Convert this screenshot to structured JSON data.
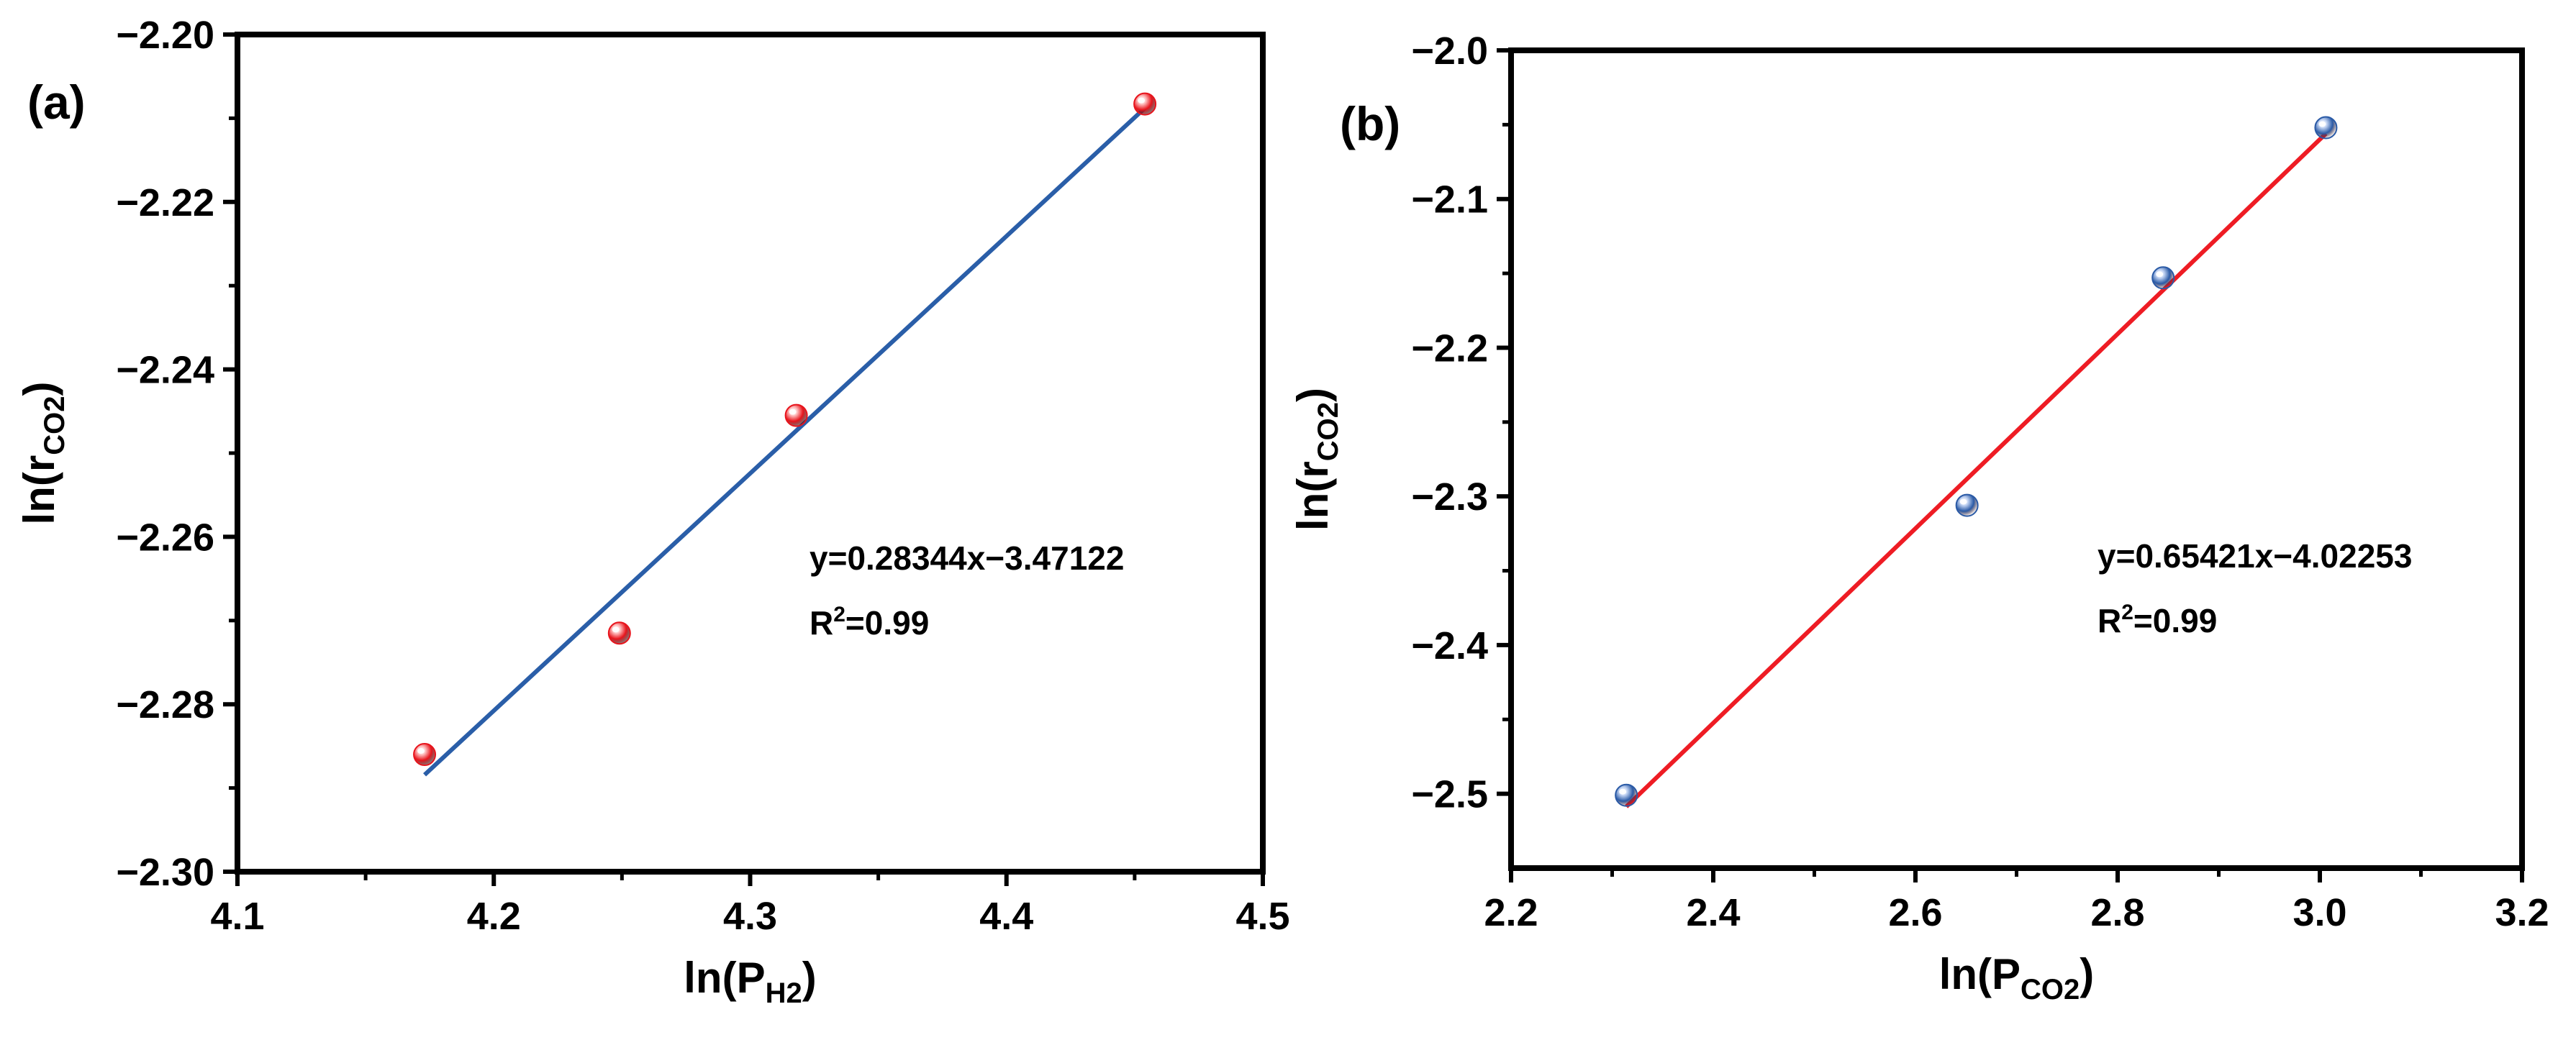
{
  "chart_data": [
    {
      "type": "scatter",
      "panel_label": "(a)",
      "xlabel": {
        "base": "ln(P",
        "sub": "H2",
        "close": ")"
      },
      "ylabel": {
        "base": "ln(r",
        "sub": "CO2",
        "close": ")"
      },
      "xlim": [
        4.1,
        4.5
      ],
      "ylim": [
        -2.3,
        -2.2
      ],
      "xticks": [
        {
          "value": 4.1,
          "label": "4.1"
        },
        {
          "value": 4.2,
          "label": "4.2"
        },
        {
          "value": 4.3,
          "label": "4.3"
        },
        {
          "value": 4.4,
          "label": "4.4"
        },
        {
          "value": 4.5,
          "label": "4.5"
        }
      ],
      "yticks": [
        {
          "value": -2.3,
          "label": "−2.30"
        },
        {
          "value": -2.28,
          "label": "−2.28"
        },
        {
          "value": -2.26,
          "label": "−2.26"
        },
        {
          "value": -2.24,
          "label": "−2.24"
        },
        {
          "value": -2.22,
          "label": "−2.22"
        },
        {
          "value": -2.2,
          "label": "−2.20"
        }
      ],
      "points": [
        {
          "x": 4.173,
          "y": -2.286
        },
        {
          "x": 4.249,
          "y": -2.2715
        },
        {
          "x": 4.318,
          "y": -2.2455
        },
        {
          "x": 4.454,
          "y": -2.2083
        }
      ],
      "fit": {
        "slope": 0.28344,
        "intercept": -3.47122,
        "x_range": [
          4.173,
          4.454
        ]
      },
      "equation": "y=0.28344x−3.47122",
      "r2": {
        "base": "R",
        "sup": "2",
        "rest": "=0.99"
      },
      "colors": {
        "point": "#e8141c",
        "point_highlight": "#ffc8c8",
        "line": "#2a5ea8"
      }
    },
    {
      "type": "scatter",
      "panel_label": "(b)",
      "xlabel": {
        "base": "ln(P",
        "sub": "CO2",
        "close": ")"
      },
      "ylabel": {
        "base": "ln(r",
        "sub": "CO2",
        "close": ")"
      },
      "xlim": [
        2.2,
        3.2
      ],
      "ylim": [
        -2.55,
        -2.0
      ],
      "xticks": [
        {
          "value": 2.2,
          "label": "2.2"
        },
        {
          "value": 2.4,
          "label": "2.4"
        },
        {
          "value": 2.6,
          "label": "2.6"
        },
        {
          "value": 2.8,
          "label": "2.8"
        },
        {
          "value": 3.0,
          "label": "3.0"
        },
        {
          "value": 3.2,
          "label": "3.2"
        }
      ],
      "yticks": [
        {
          "value": -2.5,
          "label": "−2.5"
        },
        {
          "value": -2.4,
          "label": "−2.4"
        },
        {
          "value": -2.3,
          "label": "−2.3"
        },
        {
          "value": -2.2,
          "label": "−2.2"
        },
        {
          "value": -2.1,
          "label": "−2.1"
        },
        {
          "value": -2.0,
          "label": "−2.0"
        }
      ],
      "points": [
        {
          "x": 2.314,
          "y": -2.501
        },
        {
          "x": 2.651,
          "y": -2.306
        },
        {
          "x": 2.845,
          "y": -2.153
        },
        {
          "x": 3.006,
          "y": -2.052
        }
      ],
      "fit": {
        "slope": 0.65421,
        "intercept": -4.02253,
        "x_range": [
          2.314,
          3.006
        ]
      },
      "equation": "y=0.65421x−4.02253",
      "r2": {
        "base": "R",
        "sup": "2",
        "rest": "=0.99"
      },
      "colors": {
        "point": "#2a5aa6",
        "point_highlight": "#c8d8f5",
        "line": "#ee1c24"
      }
    }
  ]
}
